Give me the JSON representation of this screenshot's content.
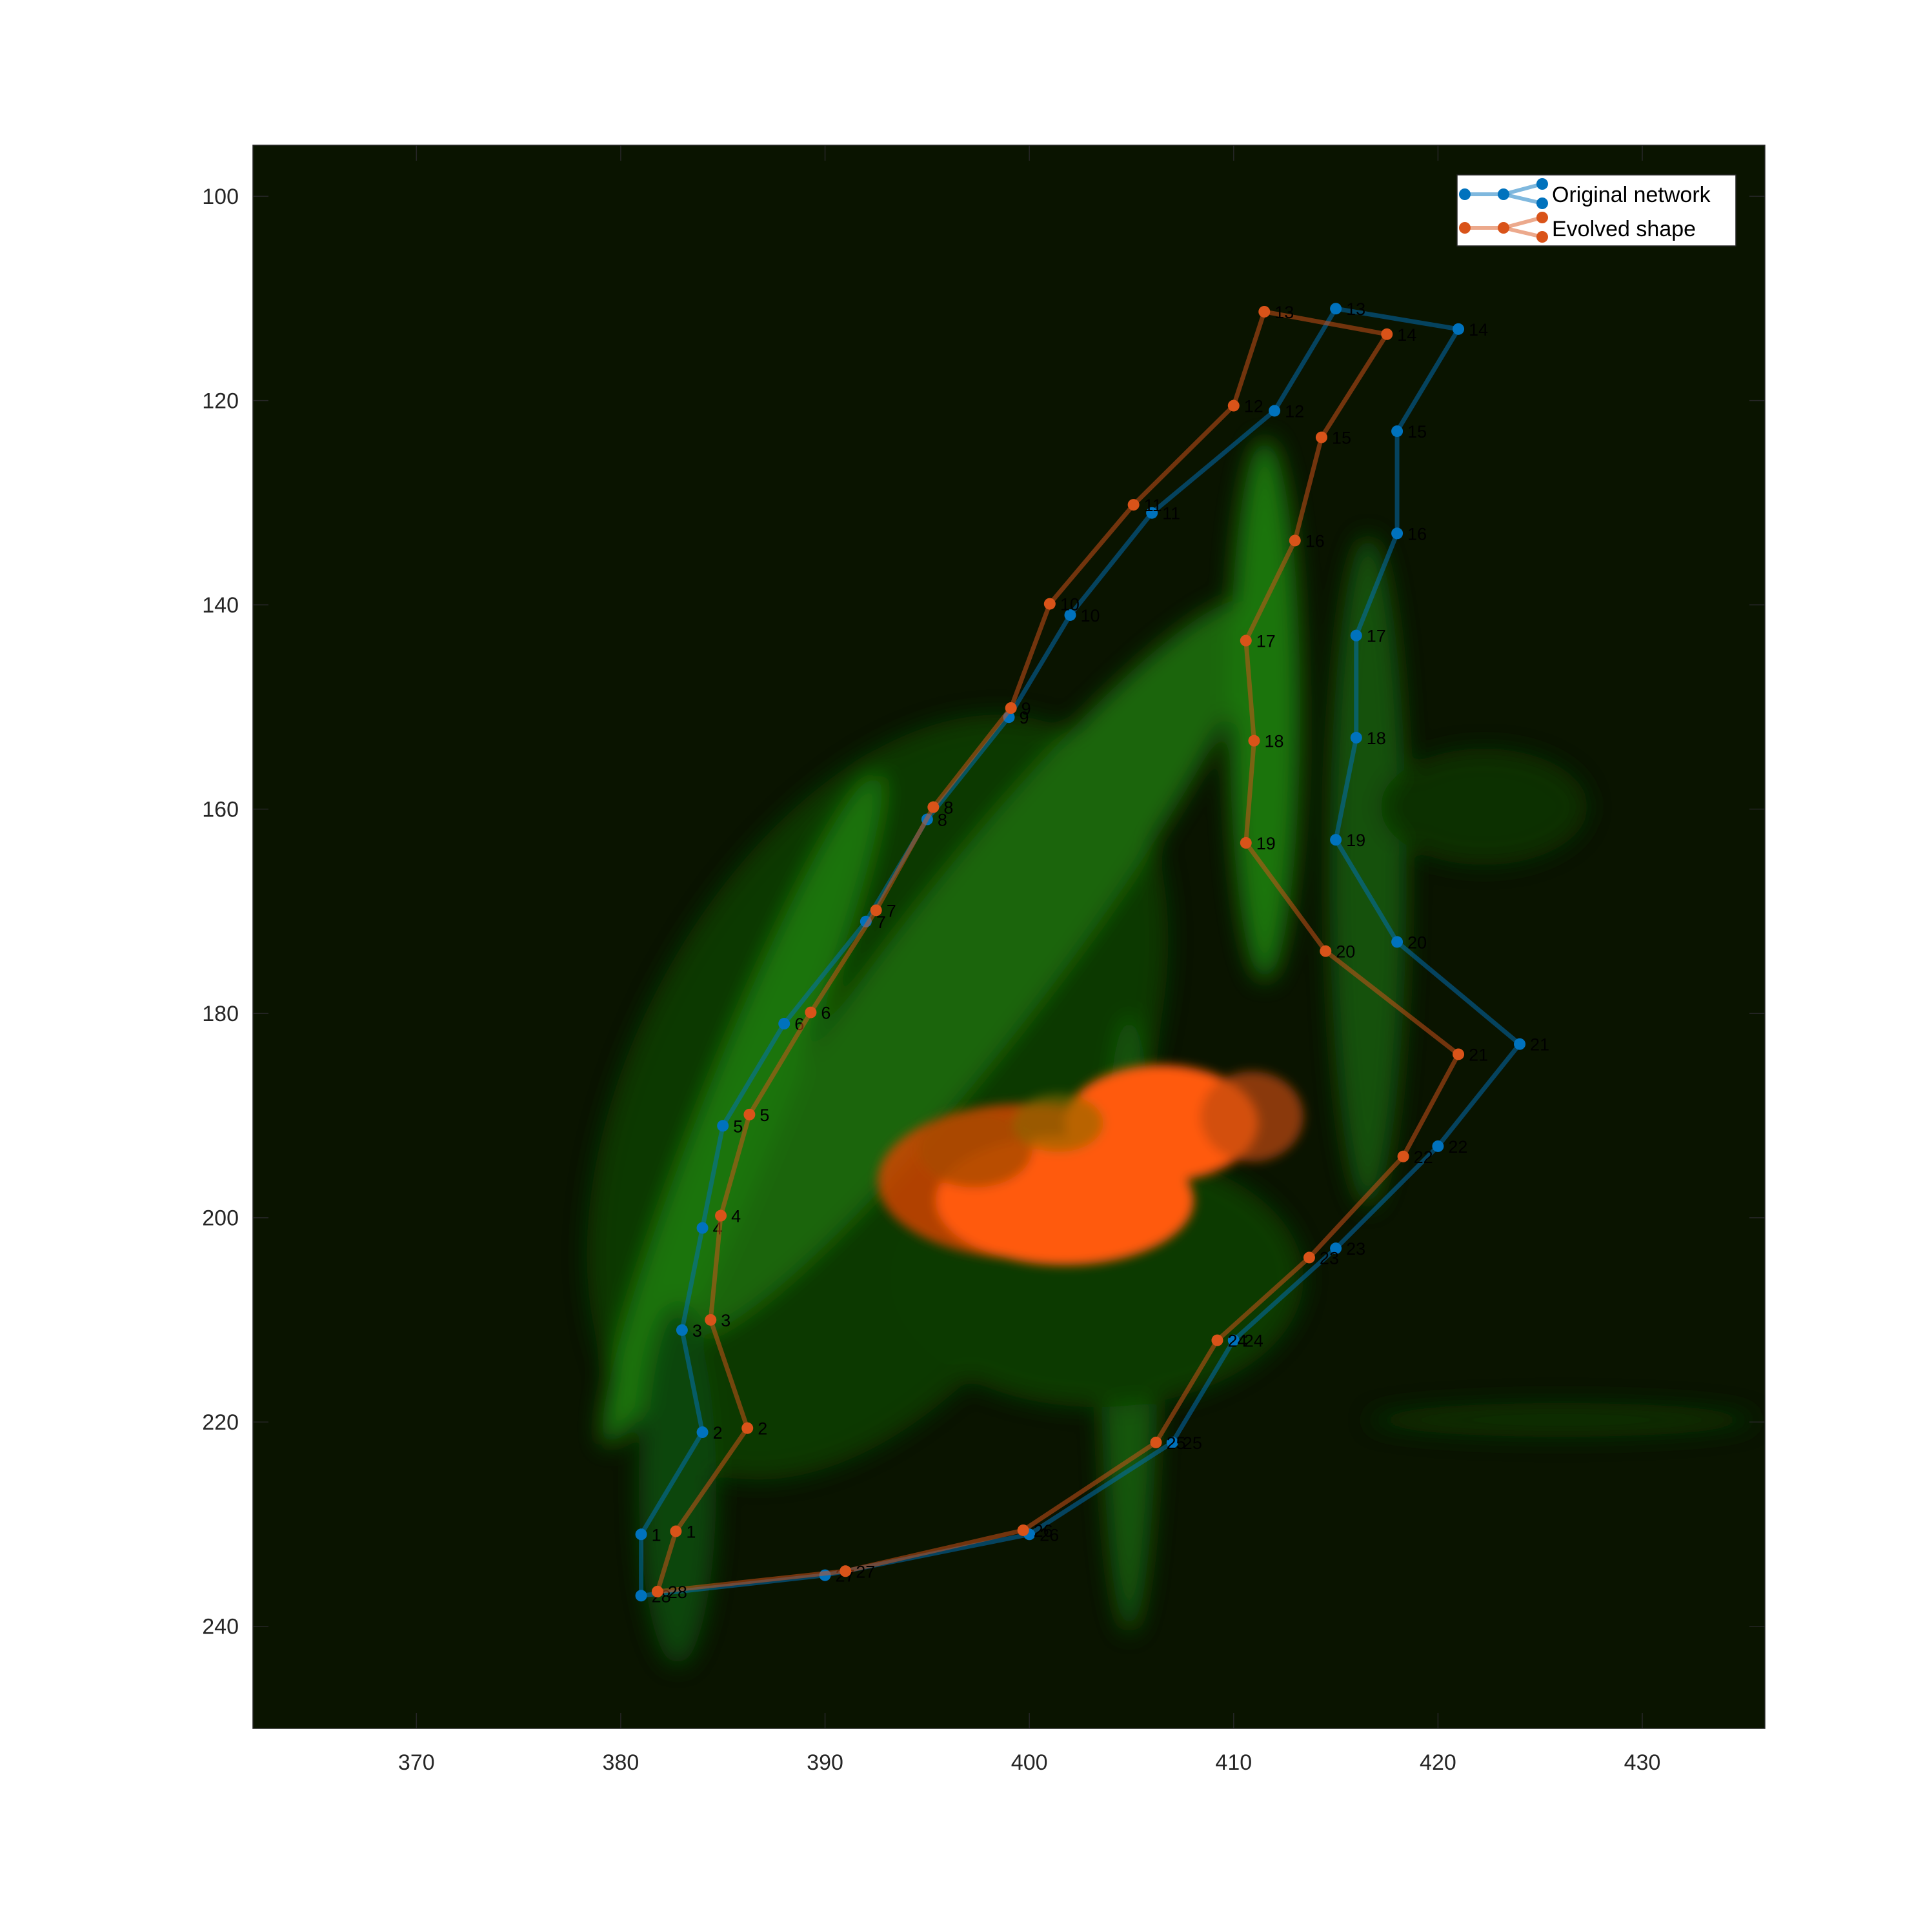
{
  "chart_data": {
    "type": "line",
    "title": "",
    "xlabel": "",
    "ylabel": "",
    "xlim": [
      362,
      436
    ],
    "ylim": [
      95,
      250
    ],
    "y_reversed": true,
    "grid": false,
    "xticks": [
      370,
      380,
      390,
      400,
      410,
      420,
      430
    ],
    "yticks": [
      100,
      120,
      140,
      160,
      180,
      200,
      220,
      240
    ],
    "legend_position": "top-right",
    "background_image": "fluorescence-microscopy-cell-green-membrane-orange-nucleus",
    "closed_polygons": true,
    "series": [
      {
        "name": "Original network",
        "color": "#0072BD",
        "points": [
          {
            "label": "1",
            "x": 381,
            "y": 231
          },
          {
            "label": "2",
            "x": 384,
            "y": 221
          },
          {
            "label": "3",
            "x": 383,
            "y": 211
          },
          {
            "label": "4",
            "x": 384,
            "y": 201
          },
          {
            "label": "5",
            "x": 385,
            "y": 191
          },
          {
            "label": "6",
            "x": 388,
            "y": 181
          },
          {
            "label": "7",
            "x": 392,
            "y": 171
          },
          {
            "label": "8",
            "x": 395,
            "y": 161
          },
          {
            "label": "9",
            "x": 399,
            "y": 151
          },
          {
            "label": "10",
            "x": 402,
            "y": 141
          },
          {
            "label": "11",
            "x": 406,
            "y": 131
          },
          {
            "label": "12",
            "x": 412,
            "y": 121
          },
          {
            "label": "13",
            "x": 415,
            "y": 111
          },
          {
            "label": "14",
            "x": 421,
            "y": 113
          },
          {
            "label": "15",
            "x": 418,
            "y": 123
          },
          {
            "label": "16",
            "x": 418,
            "y": 133
          },
          {
            "label": "17",
            "x": 416,
            "y": 143
          },
          {
            "label": "18",
            "x": 416,
            "y": 153
          },
          {
            "label": "19",
            "x": 415,
            "y": 163
          },
          {
            "label": "20",
            "x": 418,
            "y": 173
          },
          {
            "label": "21",
            "x": 424,
            "y": 183
          },
          {
            "label": "22",
            "x": 420,
            "y": 193
          },
          {
            "label": "23",
            "x": 415,
            "y": 203
          },
          {
            "label": "24",
            "x": 410,
            "y": 212
          },
          {
            "label": "25",
            "x": 407,
            "y": 222
          },
          {
            "label": "26",
            "x": 400,
            "y": 231
          },
          {
            "label": "27",
            "x": 390,
            "y": 235
          },
          {
            "label": "28",
            "x": 381,
            "y": 237
          }
        ]
      },
      {
        "name": "Evolved shape",
        "color": "#D95319",
        "points": [
          {
            "label": "1",
            "x": 382.7,
            "y": 230.7
          },
          {
            "label": "2",
            "x": 386.2,
            "y": 220.6
          },
          {
            "label": "3",
            "x": 384.4,
            "y": 210
          },
          {
            "label": "4",
            "x": 384.9,
            "y": 199.8
          },
          {
            "label": "5",
            "x": 386.3,
            "y": 189.9
          },
          {
            "label": "6",
            "x": 389.3,
            "y": 179.9
          },
          {
            "label": "7",
            "x": 392.5,
            "y": 169.9
          },
          {
            "label": "8",
            "x": 395.3,
            "y": 159.8
          },
          {
            "label": "9",
            "x": 399.1,
            "y": 150.1
          },
          {
            "label": "10",
            "x": 401,
            "y": 139.9
          },
          {
            "label": "11",
            "x": 405.1,
            "y": 130.2
          },
          {
            "label": "12",
            "x": 410,
            "y": 120.5
          },
          {
            "label": "13",
            "x": 411.5,
            "y": 111.3
          },
          {
            "label": "14",
            "x": 417.5,
            "y": 113.5
          },
          {
            "label": "15",
            "x": 414.3,
            "y": 123.6
          },
          {
            "label": "16",
            "x": 413,
            "y": 133.7
          },
          {
            "label": "17",
            "x": 410.6,
            "y": 143.5
          },
          {
            "label": "18",
            "x": 411,
            "y": 153.3
          },
          {
            "label": "19",
            "x": 410.6,
            "y": 163.3
          },
          {
            "label": "20",
            "x": 414.5,
            "y": 173.9
          },
          {
            "label": "21",
            "x": 421,
            "y": 184
          },
          {
            "label": "22",
            "x": 418.3,
            "y": 194
          },
          {
            "label": "23",
            "x": 413.7,
            "y": 203.9
          },
          {
            "label": "24",
            "x": 409.2,
            "y": 212
          },
          {
            "label": "25",
            "x": 406.2,
            "y": 222
          },
          {
            "label": "26",
            "x": 399.7,
            "y": 230.6
          },
          {
            "label": "27",
            "x": 391,
            "y": 234.6
          },
          {
            "label": "28",
            "x": 381.8,
            "y": 236.6
          }
        ]
      }
    ]
  }
}
